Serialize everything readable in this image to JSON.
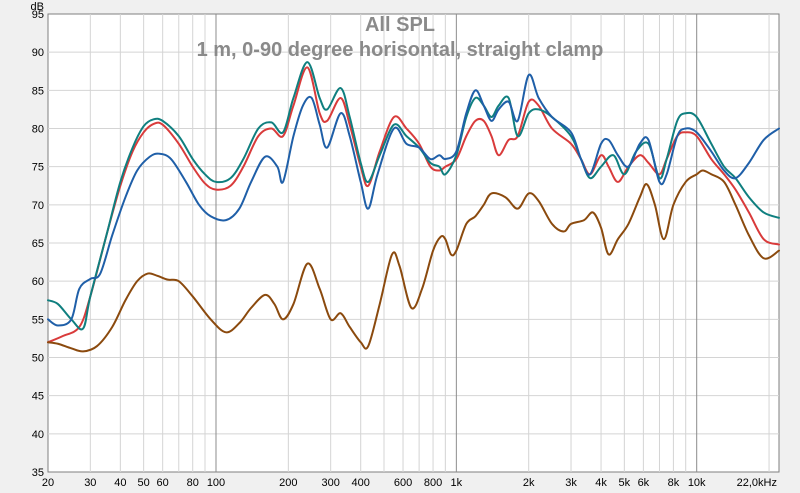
{
  "chart_data": {
    "type": "line",
    "title": "All SPL",
    "subtitle": "1 m, 0-90 degree horisontal, straight clamp",
    "y_unit": "dB",
    "x_scale": "log",
    "xlim": [
      20,
      22000
    ],
    "ylim": [
      35,
      95
    ],
    "grid": true,
    "y_ticks": [
      35,
      40,
      45,
      50,
      55,
      60,
      65,
      70,
      75,
      80,
      85,
      90,
      95
    ],
    "x_ticks": [
      {
        "value": 20,
        "label": "20"
      },
      {
        "value": 30,
        "label": "30"
      },
      {
        "value": 40,
        "label": "40"
      },
      {
        "value": 50,
        "label": "50"
      },
      {
        "value": 60,
        "label": "60"
      },
      {
        "value": 80,
        "label": "80"
      },
      {
        "value": 100,
        "label": "100"
      },
      {
        "value": 200,
        "label": "200"
      },
      {
        "value": 300,
        "label": "300"
      },
      {
        "value": 400,
        "label": "400"
      },
      {
        "value": 600,
        "label": "600"
      },
      {
        "value": 800,
        "label": "800"
      },
      {
        "value": 1000,
        "label": "1k"
      },
      {
        "value": 2000,
        "label": "2k"
      },
      {
        "value": 3000,
        "label": "3k"
      },
      {
        "value": 4000,
        "label": "4k"
      },
      {
        "value": 5000,
        "label": "5k"
      },
      {
        "value": 6000,
        "label": "6k"
      },
      {
        "value": 8000,
        "label": "8k"
      },
      {
        "value": 10000,
        "label": "10k"
      },
      {
        "value": 22000,
        "label": "22,0kHz"
      }
    ],
    "series": [
      {
        "color": "#d93b3b",
        "points": [
          [
            20,
            52
          ],
          [
            23,
            52.8
          ],
          [
            27,
            54
          ],
          [
            30,
            58
          ],
          [
            35,
            66
          ],
          [
            40,
            72.5
          ],
          [
            45,
            77
          ],
          [
            50,
            79.5
          ],
          [
            55,
            80.6
          ],
          [
            60,
            80.5
          ],
          [
            70,
            78
          ],
          [
            80,
            75
          ],
          [
            90,
            72.8
          ],
          [
            100,
            72
          ],
          [
            115,
            72.5
          ],
          [
            130,
            75
          ],
          [
            150,
            79
          ],
          [
            170,
            80
          ],
          [
            190,
            79
          ],
          [
            210,
            83
          ],
          [
            240,
            88
          ],
          [
            270,
            82
          ],
          [
            290,
            81
          ],
          [
            330,
            84
          ],
          [
            360,
            80.5
          ],
          [
            400,
            75
          ],
          [
            430,
            72.5
          ],
          [
            480,
            77
          ],
          [
            550,
            81.5
          ],
          [
            620,
            80
          ],
          [
            700,
            78
          ],
          [
            780,
            75
          ],
          [
            850,
            74.5
          ],
          [
            900,
            75
          ],
          [
            1000,
            76
          ],
          [
            1100,
            79
          ],
          [
            1200,
            81
          ],
          [
            1300,
            81
          ],
          [
            1400,
            79
          ],
          [
            1500,
            76.5
          ],
          [
            1650,
            78.5
          ],
          [
            1800,
            79
          ],
          [
            2000,
            83.5
          ],
          [
            2200,
            83
          ],
          [
            2500,
            80
          ],
          [
            3000,
            78
          ],
          [
            3300,
            76
          ],
          [
            3600,
            74
          ],
          [
            4000,
            76.5
          ],
          [
            4300,
            75
          ],
          [
            4700,
            73
          ],
          [
            5200,
            75
          ],
          [
            5800,
            76.5
          ],
          [
            6300,
            75.5
          ],
          [
            7000,
            74
          ],
          [
            7500,
            76
          ],
          [
            8300,
            79
          ],
          [
            9000,
            79.5
          ],
          [
            10000,
            79
          ],
          [
            11500,
            76
          ],
          [
            13000,
            74
          ],
          [
            14500,
            72
          ],
          [
            16500,
            69
          ],
          [
            19000,
            65.5
          ],
          [
            22000,
            64.8
          ]
        ]
      },
      {
        "color": "#0f7f7f",
        "points": [
          [
            20,
            57.5
          ],
          [
            22,
            57
          ],
          [
            25,
            55
          ],
          [
            28,
            53.8
          ],
          [
            30,
            58
          ],
          [
            35,
            66
          ],
          [
            40,
            73
          ],
          [
            45,
            77.5
          ],
          [
            50,
            80.3
          ],
          [
            55,
            81.2
          ],
          [
            60,
            81
          ],
          [
            70,
            79
          ],
          [
            80,
            76
          ],
          [
            90,
            74
          ],
          [
            100,
            73
          ],
          [
            115,
            73.5
          ],
          [
            130,
            76
          ],
          [
            150,
            80
          ],
          [
            170,
            80.8
          ],
          [
            190,
            79.5
          ],
          [
            210,
            84
          ],
          [
            240,
            88.7
          ],
          [
            270,
            84
          ],
          [
            290,
            82.5
          ],
          [
            330,
            85.3
          ],
          [
            360,
            81.5
          ],
          [
            400,
            75.5
          ],
          [
            430,
            73
          ],
          [
            480,
            76.5
          ],
          [
            550,
            80.5
          ],
          [
            620,
            79
          ],
          [
            700,
            77.5
          ],
          [
            780,
            75.5
          ],
          [
            850,
            75
          ],
          [
            900,
            74
          ],
          [
            1000,
            76.5
          ],
          [
            1100,
            81.5
          ],
          [
            1200,
            84
          ],
          [
            1300,
            83
          ],
          [
            1400,
            81.5
          ],
          [
            1500,
            83
          ],
          [
            1650,
            84
          ],
          [
            1800,
            79
          ],
          [
            2000,
            82
          ],
          [
            2200,
            82.5
          ],
          [
            2500,
            81.5
          ],
          [
            3000,
            79
          ],
          [
            3300,
            76
          ],
          [
            3600,
            73.5
          ],
          [
            4000,
            75
          ],
          [
            4500,
            76.5
          ],
          [
            5000,
            74
          ],
          [
            5600,
            77
          ],
          [
            6300,
            78
          ],
          [
            7000,
            73.5
          ],
          [
            7500,
            76
          ],
          [
            8300,
            81
          ],
          [
            9000,
            82
          ],
          [
            10000,
            81.5
          ],
          [
            11500,
            78
          ],
          [
            13000,
            75
          ],
          [
            14500,
            73.5
          ],
          [
            16500,
            71
          ],
          [
            19000,
            69
          ],
          [
            22000,
            68.3
          ]
        ]
      },
      {
        "color": "#1f5fa8",
        "points": [
          [
            20,
            55
          ],
          [
            22,
            54.2
          ],
          [
            25,
            55
          ],
          [
            27,
            59
          ],
          [
            30,
            60.3
          ],
          [
            33,
            61
          ],
          [
            37,
            66
          ],
          [
            42,
            71
          ],
          [
            47,
            74.5
          ],
          [
            53,
            76.3
          ],
          [
            58,
            76.7
          ],
          [
            65,
            76
          ],
          [
            75,
            73
          ],
          [
            85,
            70
          ],
          [
            95,
            68.5
          ],
          [
            110,
            68
          ],
          [
            125,
            69.5
          ],
          [
            140,
            73
          ],
          [
            160,
            76.3
          ],
          [
            180,
            75
          ],
          [
            190,
            73
          ],
          [
            210,
            79
          ],
          [
            230,
            83
          ],
          [
            250,
            84
          ],
          [
            270,
            80.5
          ],
          [
            290,
            77.5
          ],
          [
            330,
            82
          ],
          [
            360,
            79
          ],
          [
            400,
            73
          ],
          [
            430,
            69.5
          ],
          [
            470,
            74
          ],
          [
            550,
            80
          ],
          [
            620,
            78
          ],
          [
            700,
            77.5
          ],
          [
            780,
            76
          ],
          [
            850,
            76.5
          ],
          [
            900,
            76
          ],
          [
            1000,
            77
          ],
          [
            1100,
            82
          ],
          [
            1200,
            85
          ],
          [
            1300,
            83
          ],
          [
            1400,
            81
          ],
          [
            1500,
            82.5
          ],
          [
            1650,
            83.5
          ],
          [
            1800,
            81
          ],
          [
            2000,
            87
          ],
          [
            2200,
            84
          ],
          [
            2500,
            81.5
          ],
          [
            3000,
            79.5
          ],
          [
            3300,
            76
          ],
          [
            3600,
            74
          ],
          [
            4000,
            78
          ],
          [
            4300,
            78.5
          ],
          [
            4700,
            76.5
          ],
          [
            5200,
            75
          ],
          [
            5800,
            78
          ],
          [
            6300,
            78.5
          ],
          [
            7000,
            73
          ],
          [
            7500,
            74
          ],
          [
            8300,
            79
          ],
          [
            9000,
            80
          ],
          [
            10000,
            79.5
          ],
          [
            11500,
            77
          ],
          [
            13000,
            74.5
          ],
          [
            14500,
            73.5
          ],
          [
            16500,
            75.5
          ],
          [
            19000,
            78.5
          ],
          [
            22000,
            80
          ]
        ]
      },
      {
        "color": "#8b4a0e",
        "points": [
          [
            20,
            52
          ],
          [
            22,
            51.8
          ],
          [
            25,
            51.2
          ],
          [
            28,
            50.8
          ],
          [
            32,
            51.5
          ],
          [
            37,
            54
          ],
          [
            42,
            57.5
          ],
          [
            47,
            60
          ],
          [
            52,
            61
          ],
          [
            57,
            60.7
          ],
          [
            63,
            60.2
          ],
          [
            70,
            60
          ],
          [
            80,
            58
          ],
          [
            95,
            55
          ],
          [
            110,
            53.3
          ],
          [
            125,
            54.5
          ],
          [
            140,
            56.5
          ],
          [
            160,
            58.2
          ],
          [
            175,
            57
          ],
          [
            190,
            55
          ],
          [
            210,
            57
          ],
          [
            240,
            62.3
          ],
          [
            270,
            59
          ],
          [
            300,
            55
          ],
          [
            330,
            55.8
          ],
          [
            360,
            54
          ],
          [
            400,
            52
          ],
          [
            430,
            51.5
          ],
          [
            480,
            57
          ],
          [
            540,
            63.5
          ],
          [
            580,
            62
          ],
          [
            650,
            56.5
          ],
          [
            720,
            59
          ],
          [
            800,
            64
          ],
          [
            860,
            65.8
          ],
          [
            900,
            65.5
          ],
          [
            950,
            63.5
          ],
          [
            1000,
            64
          ],
          [
            1100,
            67.5
          ],
          [
            1200,
            68.5
          ],
          [
            1300,
            70
          ],
          [
            1400,
            71.5
          ],
          [
            1600,
            71
          ],
          [
            1800,
            69.5
          ],
          [
            2000,
            71.5
          ],
          [
            2200,
            70.5
          ],
          [
            2500,
            67.5
          ],
          [
            2800,
            66.5
          ],
          [
            3000,
            67.5
          ],
          [
            3400,
            68
          ],
          [
            3700,
            69
          ],
          [
            4000,
            67
          ],
          [
            4300,
            63.5
          ],
          [
            4700,
            65.5
          ],
          [
            5200,
            67.5
          ],
          [
            5800,
            71
          ],
          [
            6200,
            72.7
          ],
          [
            6700,
            70
          ],
          [
            7300,
            65.5
          ],
          [
            8000,
            70
          ],
          [
            9000,
            73
          ],
          [
            10000,
            74
          ],
          [
            10600,
            74.5
          ],
          [
            11500,
            74
          ],
          [
            13000,
            73
          ],
          [
            14500,
            70
          ],
          [
            16500,
            66
          ],
          [
            19000,
            63
          ],
          [
            22000,
            64
          ]
        ]
      }
    ]
  }
}
